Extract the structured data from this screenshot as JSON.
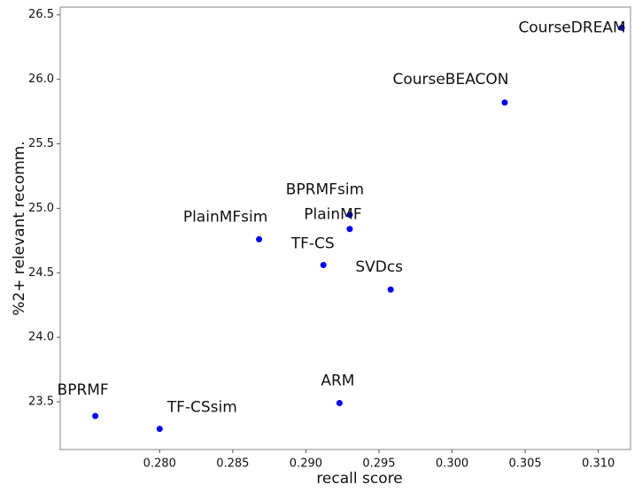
{
  "chart_data": {
    "type": "scatter",
    "x_label": "recall score",
    "y_label": "%2+ relevant recomm.",
    "color": "#0000ee",
    "series": [
      {
        "name": null,
        "labels": [
          "CourseDREAM",
          "CourseBEACON",
          "BPRMFsim",
          "PlainMF",
          "PlainMFsim",
          "TF-CS",
          "SVDcs",
          "ARM",
          "BPRMF",
          "TF-CSsim"
        ],
        "x": [
          0.3116,
          0.3036,
          0.293,
          0.293,
          0.2868,
          0.2912,
          0.2958,
          0.2923,
          0.2756,
          0.28
        ],
        "values": [
          26.4,
          25.82,
          24.95,
          24.84,
          24.76,
          24.56,
          24.37,
          23.49,
          23.39,
          23.29
        ]
      }
    ],
    "xlim": [
      0.2732,
      0.3122
    ],
    "xticks": [
      {
        "value": 0.28,
        "label": "0.280"
      },
      {
        "value": 0.285,
        "label": "0.285"
      },
      {
        "value": 0.29,
        "label": "0.290"
      },
      {
        "value": 0.295,
        "label": "0.295"
      },
      {
        "value": 0.3,
        "label": "0.300"
      },
      {
        "value": 0.305,
        "label": "0.305"
      },
      {
        "value": 0.31,
        "label": "0.310"
      }
    ],
    "ylim": [
      23.13,
      26.56
    ],
    "yticks": [
      23.5,
      {
        "value": 24,
        "label": "24.0"
      },
      24.5,
      {
        "value": 25,
        "label": "25.0"
      },
      25.5,
      {
        "value": 26,
        "label": "26.0"
      },
      26.5
    ],
    "grid": false
  }
}
